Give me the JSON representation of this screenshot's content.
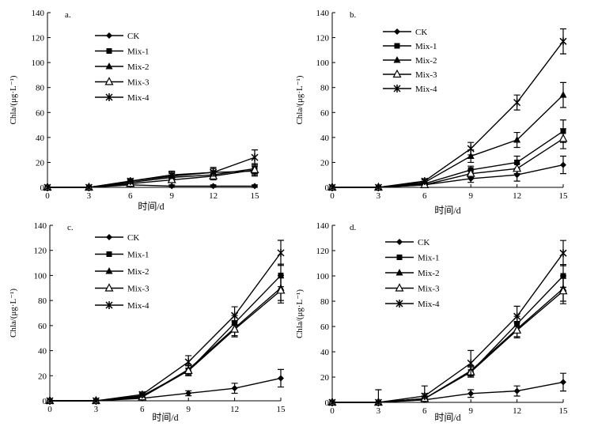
{
  "chart_data": [
    {
      "type": "line",
      "panel_label": "a.",
      "xlabel": "时间/d",
      "ylabel": "Chla/(μg·L⁻¹)",
      "x": [
        0,
        3,
        6,
        9,
        12,
        15
      ],
      "xticks": [
        "0",
        "3",
        "6",
        "9",
        "12",
        "15"
      ],
      "ylim": [
        0,
        140
      ],
      "yticks": [
        "0",
        "20",
        "40",
        "60",
        "80",
        "100",
        "120",
        "140"
      ],
      "legend_position": "upper-left",
      "series": [
        {
          "name": "CK",
          "marker": "diamond",
          "values": [
            0,
            0,
            2,
            1,
            1,
            1
          ],
          "errors": [
            0,
            0,
            1,
            1,
            1,
            1
          ]
        },
        {
          "name": "Mix-1",
          "marker": "square",
          "values": [
            0,
            0,
            4,
            8,
            10,
            15
          ],
          "errors": [
            0,
            0,
            2,
            3,
            3,
            4
          ]
        },
        {
          "name": "Mix-2",
          "marker": "triangle",
          "values": [
            0,
            0,
            5,
            9,
            12,
            13
          ],
          "errors": [
            0,
            0,
            2,
            3,
            4,
            4
          ]
        },
        {
          "name": "Mix-3",
          "marker": "triangle-open",
          "values": [
            0,
            0,
            3,
            6,
            9,
            14
          ],
          "errors": [
            0,
            0,
            2,
            2,
            3,
            4
          ]
        },
        {
          "name": "Mix-4",
          "marker": "asterisk",
          "values": [
            0,
            0,
            5,
            10,
            12,
            24
          ],
          "errors": [
            0,
            0,
            2,
            3,
            3,
            6
          ]
        }
      ]
    },
    {
      "type": "line",
      "panel_label": "b.",
      "xlabel": "时间/d",
      "ylabel": "Chla/(μg·L⁻¹)",
      "x": [
        0,
        3,
        6,
        9,
        12,
        15
      ],
      "xticks": [
        "0",
        "3",
        "6",
        "9",
        "12",
        "15"
      ],
      "ylim": [
        0,
        140
      ],
      "yticks": [
        "0",
        "20",
        "40",
        "60",
        "80",
        "100",
        "120",
        "140"
      ],
      "legend_position": "upper-left",
      "series": [
        {
          "name": "CK",
          "marker": "diamond",
          "values": [
            0,
            0,
            2,
            7,
            10,
            18
          ],
          "errors": [
            0,
            0,
            1,
            3,
            5,
            7
          ]
        },
        {
          "name": "Mix-1",
          "marker": "square",
          "values": [
            0,
            0,
            3,
            14,
            20,
            45
          ],
          "errors": [
            0,
            0,
            1,
            3,
            5,
            9
          ]
        },
        {
          "name": "Mix-2",
          "marker": "triangle",
          "values": [
            0,
            0,
            4,
            25,
            38,
            74
          ],
          "errors": [
            0,
            0,
            2,
            5,
            6,
            10
          ]
        },
        {
          "name": "Mix-3",
          "marker": "triangle-open",
          "values": [
            0,
            0,
            2,
            11,
            15,
            39
          ],
          "errors": [
            0,
            0,
            1,
            3,
            4,
            8
          ]
        },
        {
          "name": "Mix-4",
          "marker": "asterisk",
          "values": [
            0,
            0,
            5,
            31,
            68,
            117
          ],
          "errors": [
            0,
            0,
            2,
            5,
            6,
            10
          ]
        }
      ]
    },
    {
      "type": "line",
      "panel_label": "c.",
      "xlabel": "时间/d",
      "ylabel": "Chla/(μg·L⁻¹)",
      "x": [
        0,
        3,
        6,
        9,
        12,
        15
      ],
      "xticks": [
        "0",
        "3",
        "6",
        "9",
        "12",
        "15"
      ],
      "ylim": [
        0,
        140
      ],
      "yticks": [
        "0",
        "20",
        "40",
        "60",
        "80",
        "100",
        "120",
        "140"
      ],
      "legend_position": "upper-left",
      "series": [
        {
          "name": "CK",
          "marker": "diamond",
          "values": [
            0,
            0,
            2,
            6,
            10,
            18
          ],
          "errors": [
            0,
            0,
            1,
            2,
            4,
            7
          ]
        },
        {
          "name": "Mix-1",
          "marker": "square",
          "values": [
            0,
            0,
            4,
            24,
            62,
            100
          ],
          "errors": [
            0,
            0,
            2,
            4,
            6,
            9
          ]
        },
        {
          "name": "Mix-2",
          "marker": "triangle",
          "values": [
            0,
            0,
            3,
            25,
            58,
            90
          ],
          "errors": [
            0,
            0,
            2,
            4,
            6,
            10
          ]
        },
        {
          "name": "Mix-3",
          "marker": "triangle-open",
          "values": [
            0,
            0,
            3,
            24,
            57,
            88
          ],
          "errors": [
            0,
            0,
            2,
            4,
            6,
            10
          ]
        },
        {
          "name": "Mix-4",
          "marker": "asterisk",
          "values": [
            0,
            0,
            5,
            31,
            68,
            118
          ],
          "errors": [
            0,
            0,
            2,
            5,
            7,
            10
          ]
        }
      ]
    },
    {
      "type": "line",
      "panel_label": "d.",
      "xlabel": "时间/d",
      "ylabel": "Chla/(μg·L⁻¹)",
      "x": [
        0,
        3,
        6,
        9,
        12,
        15
      ],
      "xticks": [
        "0",
        "3",
        "6",
        "9",
        "12",
        "15"
      ],
      "ylim": [
        0,
        140
      ],
      "yticks": [
        "0",
        "20",
        "40",
        "60",
        "80",
        "100",
        "120",
        "140"
      ],
      "legend_position": "upper-left",
      "series": [
        {
          "name": "CK",
          "marker": "diamond",
          "values": [
            0,
            0,
            2,
            7,
            9,
            16
          ],
          "errors": [
            0,
            0,
            1,
            3,
            4,
            7
          ]
        },
        {
          "name": "Mix-1",
          "marker": "square",
          "values": [
            0,
            0,
            3,
            24,
            62,
            100
          ],
          "errors": [
            0,
            10,
            10,
            4,
            6,
            9
          ]
        },
        {
          "name": "Mix-2",
          "marker": "triangle",
          "values": [
            0,
            0,
            3,
            25,
            58,
            90
          ],
          "errors": [
            0,
            0,
            2,
            4,
            6,
            10
          ]
        },
        {
          "name": "Mix-3",
          "marker": "triangle-open",
          "values": [
            0,
            0,
            3,
            24,
            57,
            88
          ],
          "errors": [
            0,
            0,
            2,
            4,
            6,
            10
          ]
        },
        {
          "name": "Mix-4",
          "marker": "asterisk",
          "values": [
            0,
            0,
            5,
            31,
            68,
            118
          ],
          "errors": [
            0,
            0,
            2,
            10,
            8,
            10
          ]
        }
      ]
    }
  ]
}
